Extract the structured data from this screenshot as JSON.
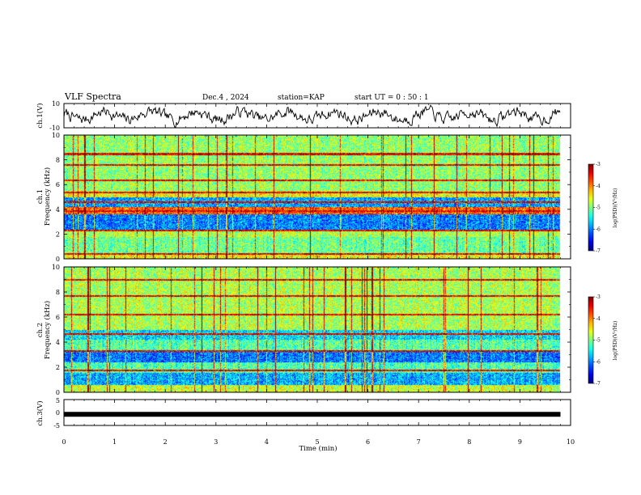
{
  "header": {
    "title": "VLF Spectra",
    "date": "Dec.4 , 2024",
    "station": "station=KAP",
    "start_ut": "start  UT =   0 : 50 : 1"
  },
  "chart_data": [
    {
      "type": "line",
      "name": "ch1-waveform",
      "ylabel": "ch.1(V)",
      "ylim": [
        -10,
        10
      ],
      "y_ticks": [
        "10",
        "-10"
      ],
      "xlim": [
        0,
        9.8
      ],
      "seed": 7,
      "amplitude": 6,
      "color": "#000000"
    },
    {
      "type": "heatmap",
      "name": "ch1-spectrogram",
      "ylabel": "ch.1\nFrequency (kHz)",
      "ylim": [
        0,
        10
      ],
      "y_ticks": [
        "0",
        "2",
        "4",
        "6",
        "8",
        "10"
      ],
      "xlim": [
        0,
        9.8
      ],
      "seed": 11,
      "colorbar": {
        "label": "log(PSD)(V²/Hz)",
        "ticks": [
          "-3",
          "-4",
          "-5",
          "-6",
          "-7"
        ],
        "range": [
          -7,
          -3
        ]
      },
      "bands_khz": [
        {
          "f0": 0.0,
          "f1": 0.5,
          "level": 0.62
        },
        {
          "f0": 0.5,
          "f1": 1.8,
          "level": 0.48
        },
        {
          "f0": 1.8,
          "f1": 2.4,
          "level": 0.55
        },
        {
          "f0": 2.4,
          "f1": 3.6,
          "level": 0.25
        },
        {
          "f0": 3.6,
          "f1": 4.2,
          "level": 0.78
        },
        {
          "f0": 4.2,
          "f1": 5.0,
          "level": 0.28
        },
        {
          "f0": 5.0,
          "f1": 5.5,
          "level": 0.62
        },
        {
          "f0": 5.5,
          "f1": 10.0,
          "level": 0.52
        }
      ],
      "lines_khz": [
        0.4,
        2.3,
        3.9,
        4.6,
        5.4,
        6.4,
        7.6,
        8.5
      ]
    },
    {
      "type": "heatmap",
      "name": "ch2-spectrogram",
      "ylabel": "ch.2\nFrequency (kHz)",
      "ylim": [
        0,
        10
      ],
      "y_ticks": [
        "0",
        "2",
        "4",
        "6",
        "8",
        "10"
      ],
      "xlim": [
        0,
        9.8
      ],
      "seed": 23,
      "colorbar": {
        "label": "log(PSD)(V²/Hz)",
        "ticks": [
          "-3",
          "-4",
          "-5",
          "-6",
          "-7"
        ],
        "range": [
          -7,
          -3
        ]
      },
      "bands_khz": [
        {
          "f0": 0.0,
          "f1": 0.6,
          "level": 0.58
        },
        {
          "f0": 0.6,
          "f1": 1.6,
          "level": 0.3
        },
        {
          "f0": 1.6,
          "f1": 2.4,
          "level": 0.45
        },
        {
          "f0": 2.4,
          "f1": 3.4,
          "level": 0.24
        },
        {
          "f0": 3.4,
          "f1": 4.2,
          "level": 0.46
        },
        {
          "f0": 4.2,
          "f1": 5.0,
          "level": 0.35
        },
        {
          "f0": 5.0,
          "f1": 10.0,
          "level": 0.55
        }
      ],
      "lines_khz": [
        1.8,
        3.3,
        4.7,
        6.2,
        7.7,
        9.0
      ]
    },
    {
      "type": "line",
      "name": "ch3-waveform",
      "ylabel": "ch.3(V)",
      "ylim": [
        -5,
        5
      ],
      "y_ticks": [
        "5",
        "0",
        "-5"
      ],
      "xlim": [
        0,
        9.8
      ],
      "value": -0.7,
      "color": "#000000"
    }
  ],
  "x_axis": {
    "label": "Time  (min)",
    "ticks": [
      "0",
      "1",
      "2",
      "3",
      "4",
      "5",
      "6",
      "7",
      "8",
      "9",
      "10"
    ],
    "range": [
      0,
      10
    ]
  }
}
